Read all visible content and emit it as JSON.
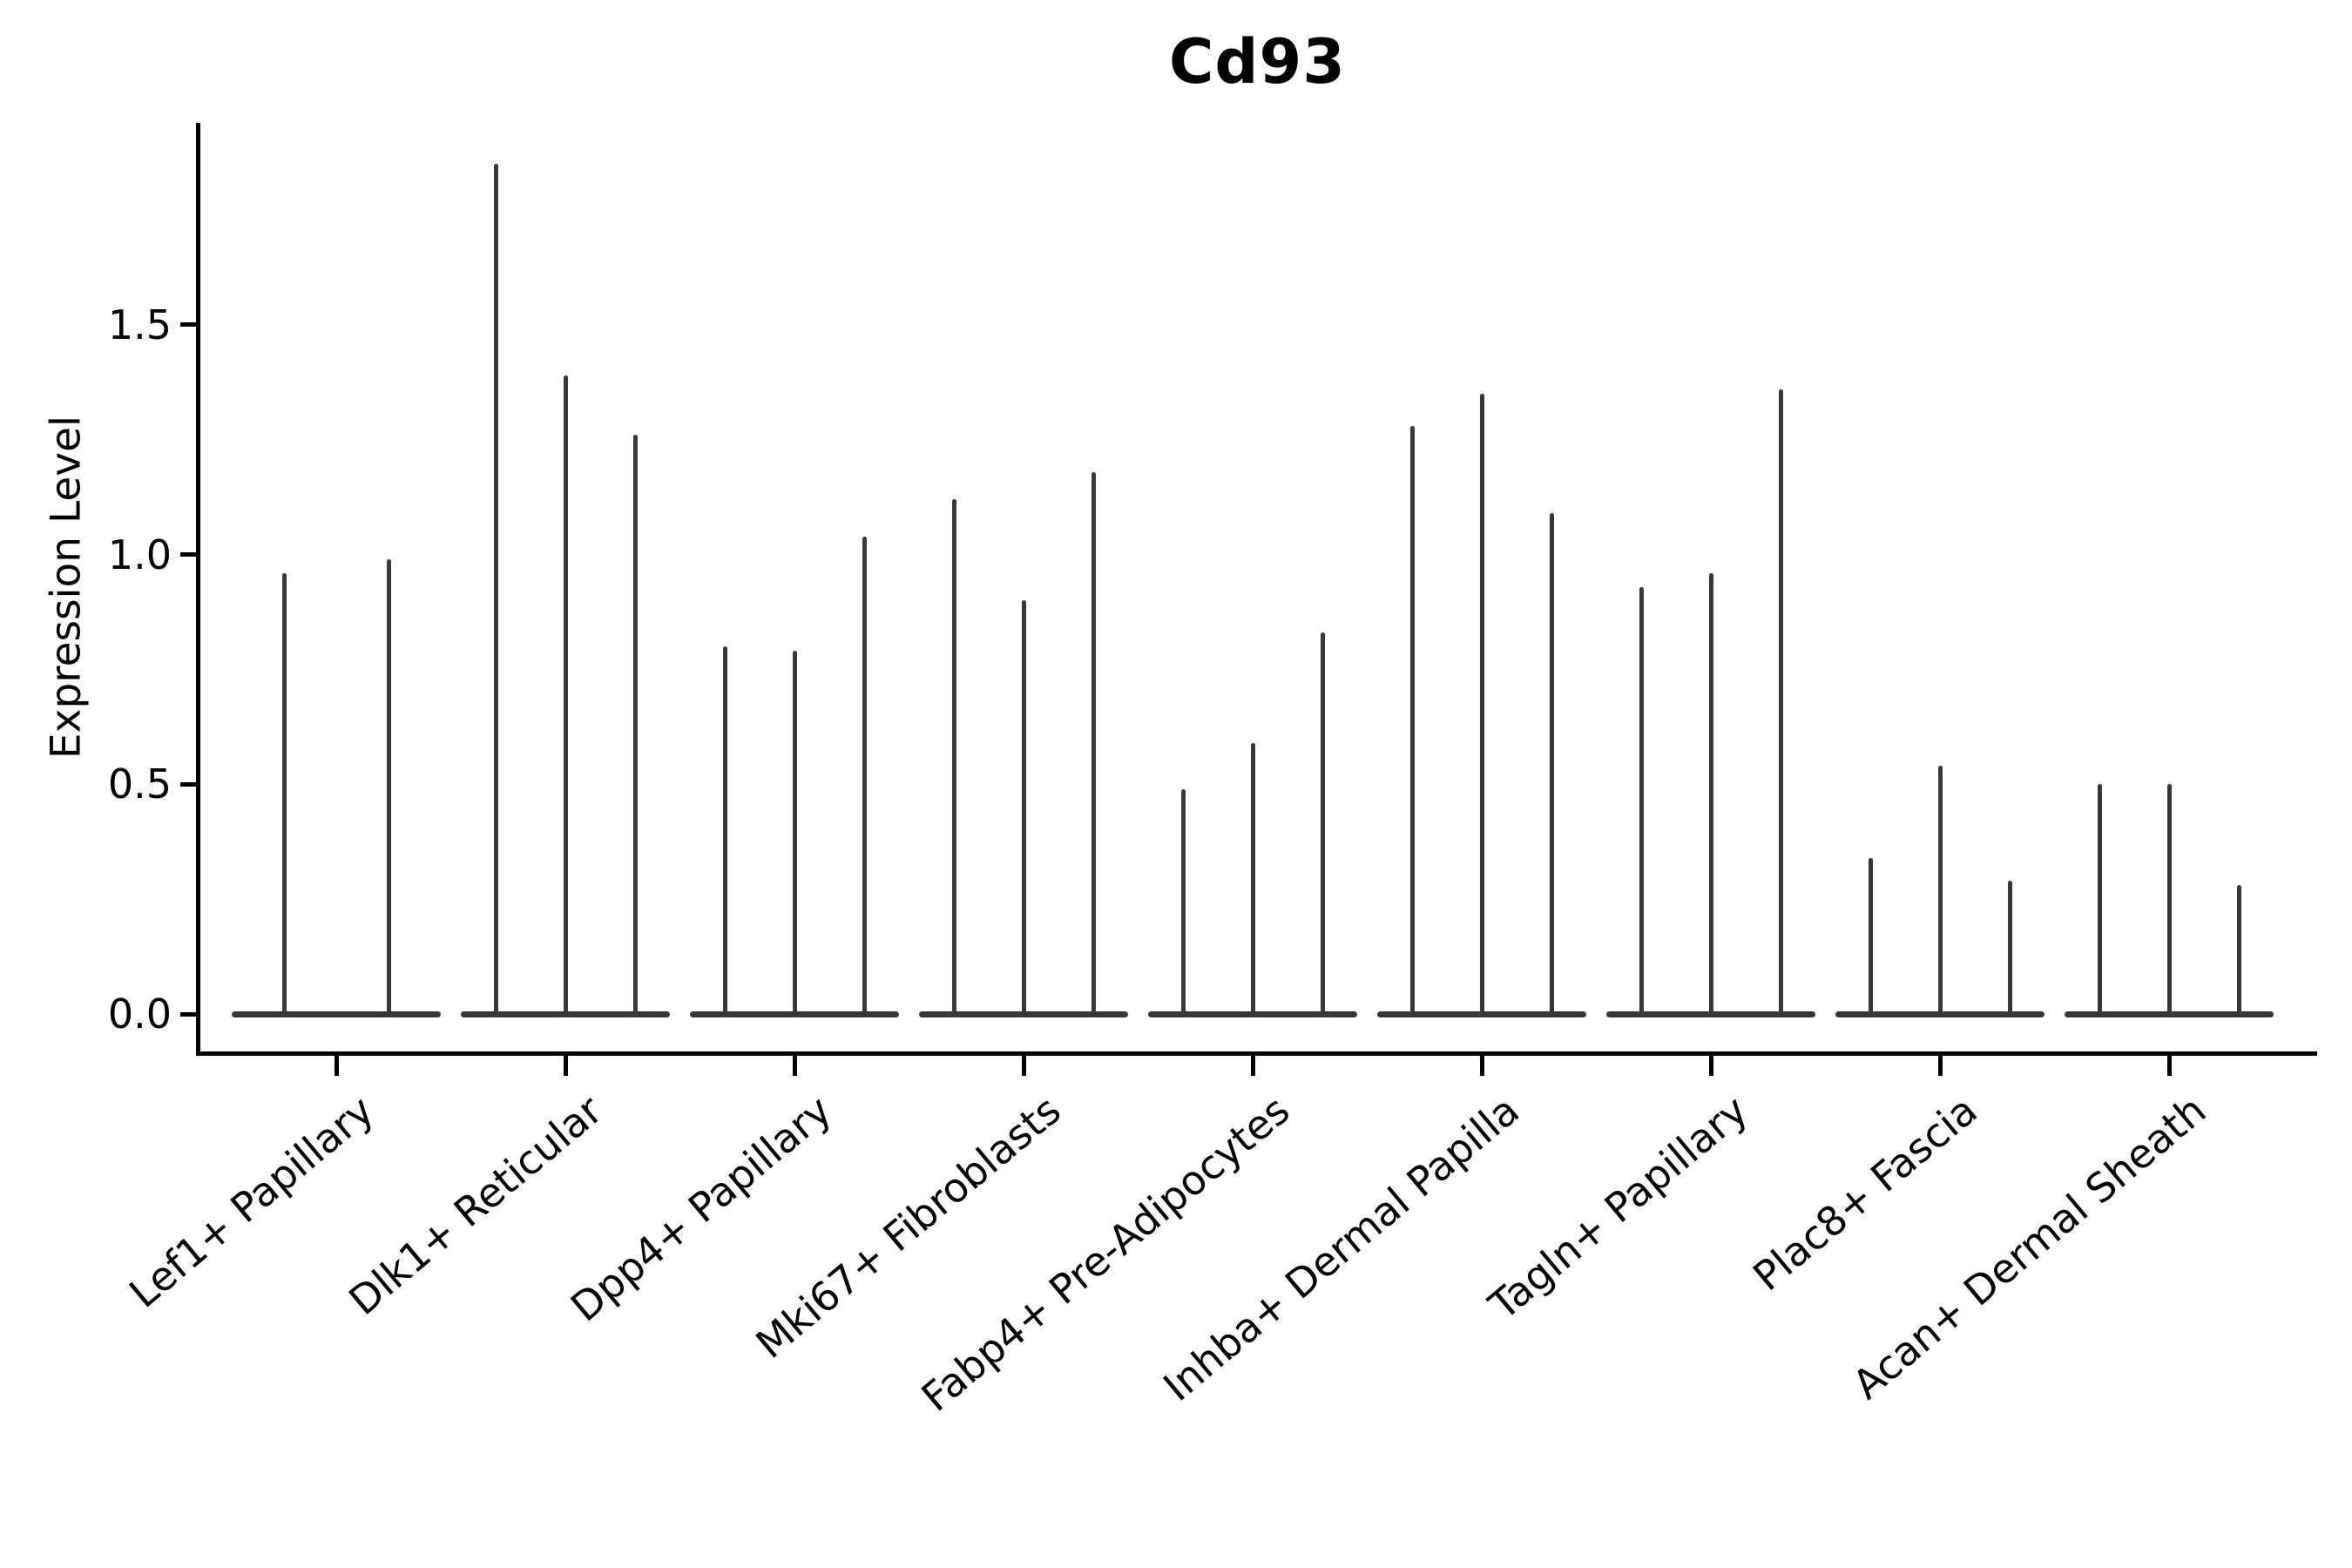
{
  "colors": {
    "violin": "#383838",
    "axis": "#000000",
    "background": "#ffffff",
    "text": "#000000"
  },
  "chart_data": {
    "type": "violin",
    "title": "Cd93",
    "ylabel": "Expression Level",
    "xlabel": "",
    "ylim": [
      0,
      1.94
    ],
    "yticks": [
      0.0,
      0.5,
      1.0,
      1.5
    ],
    "grid": false,
    "legend_position": "none",
    "x_label_rotation_deg": 40,
    "categories": [
      "Lef1+ Papillary",
      "Dlk1+ Reticular",
      "Dpp4+ Papillary",
      "Mki67+ Fibroblasts",
      "Fabp4+ Pre-Adipocytes",
      "Inhba+ Dermal Papilla",
      "Tagln+ Papillary",
      "Plac8+ Fascia",
      "Acan+ Dermal Sheath"
    ],
    "groups": [
      {
        "category": "Lef1+ Papillary",
        "violin_peaks": [
          0.96,
          0.99
        ]
      },
      {
        "category": "Dlk1+ Reticular",
        "violin_peaks": [
          1.85,
          1.39,
          1.26
        ]
      },
      {
        "category": "Dpp4+ Papillary",
        "violin_peaks": [
          0.8,
          0.79,
          1.04
        ]
      },
      {
        "category": "Mki67+ Fibroblasts",
        "violin_peaks": [
          1.12,
          0.9,
          1.18
        ]
      },
      {
        "category": "Fabp4+ Pre-Adipocytes",
        "violin_peaks": [
          0.49,
          0.59,
          0.83
        ]
      },
      {
        "category": "Inhba+ Dermal Papilla",
        "violin_peaks": [
          1.28,
          1.35,
          1.09
        ]
      },
      {
        "category": "Tagln+ Papillary",
        "violin_peaks": [
          0.93,
          0.96,
          1.36
        ]
      },
      {
        "category": "Plac8+ Fascia",
        "violin_peaks": [
          0.34,
          0.54,
          0.29
        ]
      },
      {
        "category": "Acan+ Dermal Sheath",
        "violin_peaks": [
          0.5,
          0.5,
          0.28
        ]
      }
    ]
  }
}
